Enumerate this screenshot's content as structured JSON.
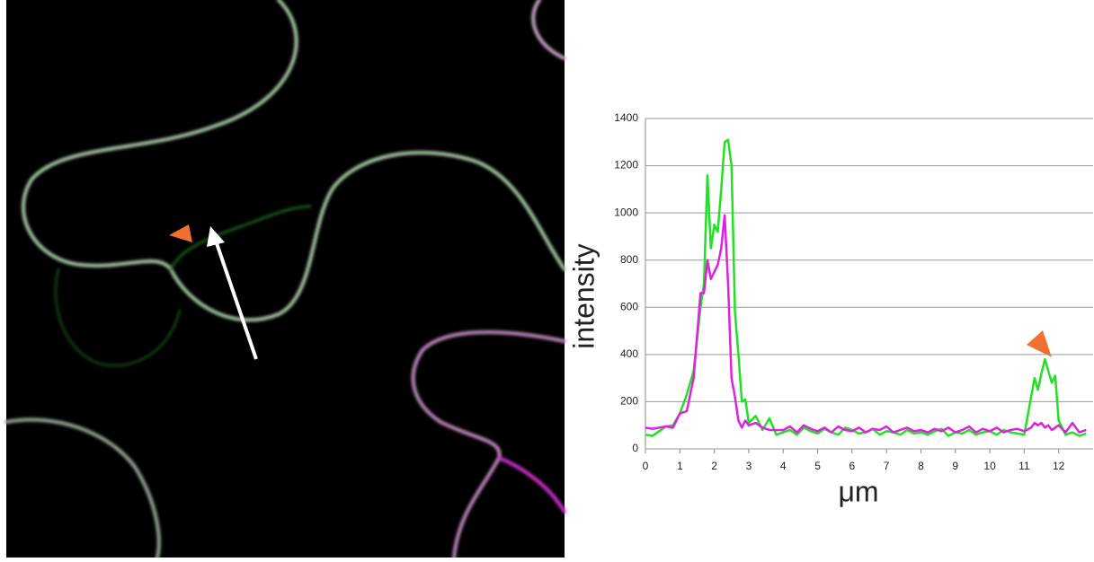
{
  "chart_data": {
    "type": "line",
    "y_label": "intensity",
    "x_label": "μm",
    "x": [
      0,
      0.2,
      0.4,
      0.6,
      0.8,
      1.0,
      1.2,
      1.4,
      1.6,
      1.7,
      1.8,
      1.9,
      2.0,
      2.1,
      2.2,
      2.3,
      2.4,
      2.5,
      2.6,
      2.7,
      2.8,
      2.9,
      3.0,
      3.2,
      3.4,
      3.6,
      3.8,
      4.0,
      4.2,
      4.4,
      4.6,
      4.8,
      5.0,
      5.2,
      5.4,
      5.6,
      5.8,
      6.0,
      6.2,
      6.4,
      6.6,
      6.8,
      7.0,
      7.2,
      7.4,
      7.6,
      7.8,
      8.0,
      8.2,
      8.4,
      8.6,
      8.8,
      9.0,
      9.2,
      9.4,
      9.6,
      9.8,
      10.0,
      10.2,
      10.4,
      10.6,
      10.8,
      11.0,
      11.2,
      11.3,
      11.4,
      11.5,
      11.6,
      11.7,
      11.8,
      11.9,
      12.0,
      12.2,
      12.4,
      12.6,
      12.8
    ],
    "series": [
      {
        "color": "#22e022",
        "values": [
          60,
          55,
          75,
          95,
          100,
          150,
          230,
          330,
          600,
          700,
          1160,
          850,
          950,
          920,
          1100,
          1300,
          1310,
          1200,
          580,
          400,
          200,
          210,
          110,
          140,
          80,
          130,
          60,
          70,
          80,
          60,
          90,
          75,
          65,
          85,
          70,
          60,
          90,
          80,
          65,
          70,
          85,
          60,
          75,
          70,
          60,
          80,
          65,
          70,
          60,
          75,
          85,
          55,
          70,
          65,
          80,
          60,
          70,
          75,
          60,
          80,
          70,
          65,
          60,
          220,
          300,
          250,
          320,
          380,
          330,
          280,
          310,
          120,
          60,
          70,
          55,
          65
        ]
      },
      {
        "color": "#e020e0",
        "values": [
          90,
          85,
          90,
          95,
          90,
          150,
          160,
          300,
          660,
          660,
          800,
          720,
          750,
          780,
          850,
          990,
          700,
          300,
          220,
          120,
          90,
          120,
          100,
          110,
          90,
          80,
          80,
          80,
          95,
          70,
          100,
          85,
          75,
          90,
          70,
          95,
          80,
          75,
          90,
          70,
          85,
          80,
          95,
          70,
          80,
          90,
          75,
          80,
          70,
          85,
          75,
          90,
          70,
          80,
          95,
          70,
          85,
          75,
          90,
          70,
          80,
          85,
          75,
          90,
          110,
          100,
          110,
          90,
          100,
          80,
          90,
          100,
          70,
          110,
          70,
          80
        ]
      }
    ],
    "xlim": [
      0,
      13
    ],
    "ylim": [
      0,
      1400
    ],
    "xticks": [
      0,
      1,
      2,
      3,
      4,
      5,
      6,
      7,
      8,
      9,
      10,
      11,
      12
    ],
    "yticks": [
      0,
      200,
      400,
      600,
      800,
      1000,
      1200,
      1400
    ],
    "grid": true
  }
}
